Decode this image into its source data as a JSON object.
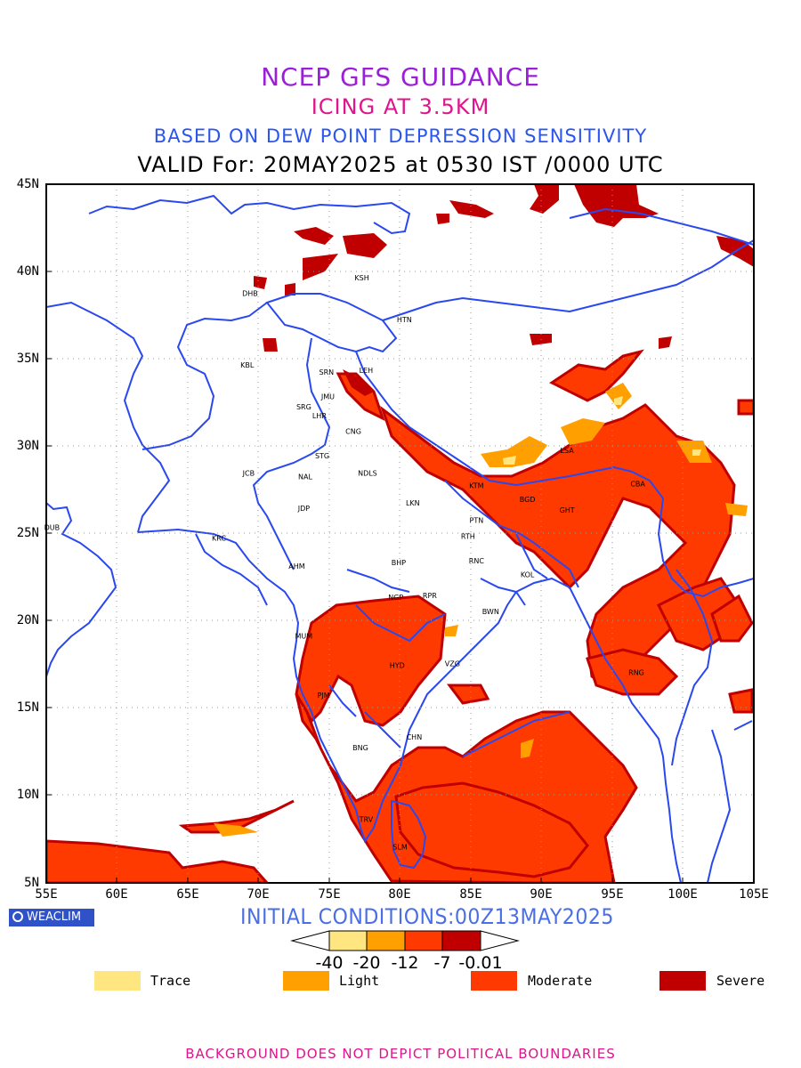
{
  "titles": {
    "line1": "NCEP GFS GUIDANCE",
    "line2": "ICING AT 3.5KM",
    "line3": "BASED ON DEW POINT DEPRESSION SENSITIVITY",
    "line4": "VALID For: 20MAY2025 at 0530 IST /0000 UTC"
  },
  "axes": {
    "lat_labels": [
      "45N",
      "40N",
      "35N",
      "30N",
      "25N",
      "20N",
      "15N",
      "10N",
      "5N"
    ],
    "lon_labels": [
      "55E",
      "60E",
      "65E",
      "70E",
      "75E",
      "80E",
      "85E",
      "90E",
      "95E",
      "100E",
      "105E"
    ],
    "lat_range": [
      5,
      45
    ],
    "lon_range": [
      55,
      105
    ],
    "grid": "dotted"
  },
  "logo_text": "WEACLIM",
  "initial_conditions": "INITIAL CONDITIONS:00Z13MAY2025",
  "colorbar": {
    "ticks": [
      "-40",
      "-20",
      "-12",
      "-7",
      "-0.01"
    ],
    "colors": [
      "#ffe680",
      "#ffa000",
      "#ff3a00",
      "#c00000"
    ]
  },
  "legend": [
    {
      "label": "Trace",
      "color": "#ffe680"
    },
    {
      "label": "Light",
      "color": "#ffa000"
    },
    {
      "label": "Moderate",
      "color": "#ff3a00"
    },
    {
      "label": "Severe",
      "color": "#c00000"
    }
  ],
  "stations": [
    {
      "code": "KSH",
      "lon": 77.3,
      "lat": 39.5
    },
    {
      "code": "DHB",
      "lon": 69.4,
      "lon_note": "",
      "lat": 38.6
    },
    {
      "code": "HTN",
      "lon": 80.3,
      "lat": 37.1
    },
    {
      "code": "KBL",
      "lon": 69.2,
      "lat": 34.5
    },
    {
      "code": "SRN",
      "lon": 74.8,
      "lat": 34.1
    },
    {
      "code": "LEH",
      "lon": 77.6,
      "lat": 34.2
    },
    {
      "code": "JMU",
      "lon": 74.9,
      "lat": 32.7
    },
    {
      "code": "SRG",
      "lon": 73.2,
      "lat": 32.1
    },
    {
      "code": "LHR",
      "lon": 74.3,
      "lat": 31.6
    },
    {
      "code": "CNG",
      "lon": 76.7,
      "lat": 30.7
    },
    {
      "code": "STG",
      "lon": 74.5,
      "lat": 29.3
    },
    {
      "code": "JCB",
      "lon": 69.3,
      "lat": 28.3
    },
    {
      "code": "NAL",
      "lon": 73.3,
      "lat": 28.1
    },
    {
      "code": "NDLS",
      "lon": 77.7,
      "lat": 28.3
    },
    {
      "code": "JDP",
      "lon": 73.2,
      "lat": 26.3
    },
    {
      "code": "LKN",
      "lon": 80.9,
      "lat": 26.6
    },
    {
      "code": "KTM",
      "lon": 85.4,
      "lat": 27.6
    },
    {
      "code": "LSA",
      "lon": 91.8,
      "lat": 29.6
    },
    {
      "code": "BGD",
      "lon": 89.0,
      "lat": 26.8
    },
    {
      "code": "CBA",
      "lon": 96.8,
      "lat": 27.7
    },
    {
      "code": "GHT",
      "lon": 91.8,
      "lat": 26.2
    },
    {
      "code": "DUB",
      "lon": 55.4,
      "lat": 25.2
    },
    {
      "code": "PTN",
      "lon": 85.4,
      "lat": 25.6
    },
    {
      "code": "RTH",
      "lon": 84.8,
      "lat": 24.7
    },
    {
      "code": "KRC",
      "lon": 67.2,
      "lat": 24.6
    },
    {
      "code": "AHM",
      "lon": 72.7,
      "lat": 23.0
    },
    {
      "code": "BHP",
      "lon": 79.9,
      "lat": 23.2
    },
    {
      "code": "RNC",
      "lon": 85.4,
      "lat": 23.3
    },
    {
      "code": "KOL",
      "lon": 89.0,
      "lat": 22.5
    },
    {
      "code": "NGP",
      "lon": 79.7,
      "lat": 21.2
    },
    {
      "code": "RPR",
      "lon": 82.1,
      "lat": 21.3
    },
    {
      "code": "BWN",
      "lon": 86.4,
      "lat": 20.4
    },
    {
      "code": "MUM",
      "lon": 73.2,
      "lat": 19.0
    },
    {
      "code": "HYD",
      "lon": 79.8,
      "lat": 17.3
    },
    {
      "code": "VZG",
      "lon": 83.7,
      "lat": 17.4
    },
    {
      "code": "RNG",
      "lon": 96.7,
      "lat": 16.9
    },
    {
      "code": "PJM",
      "lon": 74.6,
      "lat": 15.6
    },
    {
      "code": "CHN",
      "lon": 81.0,
      "lat": 13.2
    },
    {
      "code": "BNG",
      "lon": 77.2,
      "lat": 12.6
    },
    {
      "code": "TRV",
      "lon": 77.6,
      "lat": 8.5
    },
    {
      "code": "SLM",
      "lon": 80.0,
      "lat": 6.9
    }
  ],
  "footer": "BACKGROUND DOES NOT DEPICT POLITICAL BOUNDARIES"
}
